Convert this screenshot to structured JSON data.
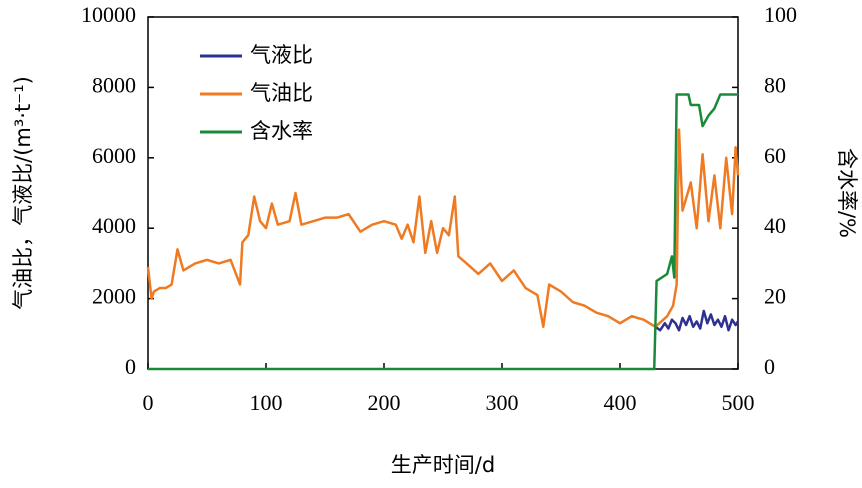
{
  "chart_data": {
    "type": "line",
    "xlabel": "生产时间/d",
    "ylabel": "气油比，气液比/(m³·t⁻¹)",
    "y2label": "含水率/%",
    "xlim": [
      0,
      500
    ],
    "xticks": [
      0,
      100,
      200,
      300,
      400,
      500
    ],
    "ylim": [
      0,
      10000
    ],
    "yticks": [
      0,
      2000,
      4000,
      6000,
      8000,
      10000
    ],
    "y2lim": [
      0,
      100
    ],
    "y2ticks": [
      0,
      20,
      40,
      60,
      80,
      100
    ],
    "legend": "upper left",
    "series": [
      {
        "name": "气液比",
        "color": "#2e3192",
        "x": [
          430,
          434,
          438,
          441,
          444,
          447,
          450,
          453,
          456,
          459,
          462,
          465,
          468,
          471,
          474,
          477,
          480,
          483,
          486,
          489,
          492,
          495,
          498,
          500
        ],
        "values": [
          1200,
          1100,
          1300,
          1150,
          1400,
          1300,
          1100,
          1450,
          1250,
          1500,
          1200,
          1350,
          1150,
          1650,
          1300,
          1550,
          1250,
          1400,
          1200,
          1500,
          1100,
          1400,
          1250,
          1350
        ]
      },
      {
        "name": "气油比",
        "color": "#f07a22",
        "x": [
          0,
          3,
          5,
          10,
          15,
          20,
          25,
          30,
          35,
          40,
          50,
          60,
          70,
          78,
          80,
          85,
          90,
          95,
          100,
          105,
          110,
          120,
          125,
          130,
          140,
          150,
          160,
          170,
          180,
          190,
          200,
          210,
          215,
          220,
          225,
          230,
          235,
          240,
          245,
          250,
          255,
          260,
          263,
          270,
          280,
          290,
          300,
          310,
          320,
          330,
          335,
          340,
          350,
          360,
          370,
          380,
          390,
          400,
          410,
          420,
          430,
          440,
          445,
          448,
          450,
          453,
          460,
          465,
          470,
          475,
          480,
          485,
          490,
          495,
          498,
          500
        ],
        "values": [
          2900,
          2000,
          2200,
          2300,
          2300,
          2400,
          3400,
          2800,
          2900,
          3000,
          3100,
          3000,
          3100,
          2400,
          3600,
          3800,
          4900,
          4200,
          4000,
          4700,
          4100,
          4200,
          5000,
          4100,
          4200,
          4300,
          4300,
          4400,
          3900,
          4100,
          4200,
          4100,
          3700,
          4100,
          3600,
          4900,
          3300,
          4200,
          3300,
          4000,
          3800,
          4900,
          3200,
          3000,
          2700,
          3000,
          2500,
          2800,
          2300,
          2100,
          1200,
          2400,
          2200,
          1900,
          1800,
          1600,
          1500,
          1300,
          1500,
          1400,
          1200,
          1500,
          1800,
          2400,
          6800,
          4500,
          5300,
          4000,
          6100,
          4200,
          5500,
          4000,
          6000,
          4400,
          6300,
          5500
        ]
      },
      {
        "name": "含水率",
        "color": "#1a8a3a",
        "axis": "y2",
        "x": [
          0,
          429,
          431,
          440,
          444,
          446,
          448,
          458,
          460,
          467,
          470,
          475,
          480,
          485,
          500
        ],
        "values": [
          0,
          0,
          25,
          27,
          32,
          26,
          78,
          78,
          75,
          75,
          69,
          72,
          74,
          78,
          78
        ]
      }
    ]
  }
}
